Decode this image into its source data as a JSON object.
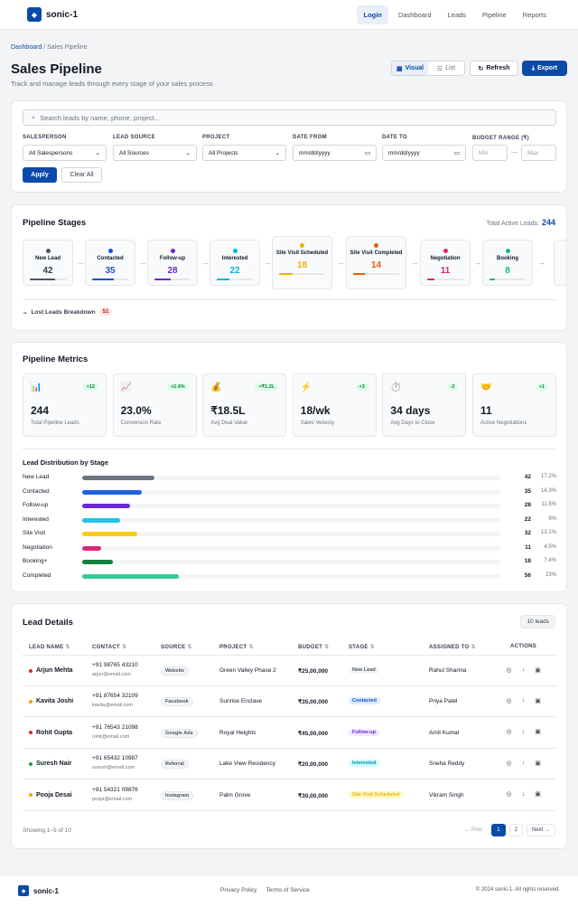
{
  "app": {
    "name": "sonic-1"
  },
  "nav": [
    {
      "label": "Login",
      "active": true
    },
    {
      "label": "Dashboard"
    },
    {
      "label": "Leads"
    },
    {
      "label": "Pipeline"
    },
    {
      "label": "Reports"
    }
  ],
  "breadcrumb": {
    "home": "Dashboard",
    "sep": "/",
    "current": "Sales Pipeline"
  },
  "page": {
    "title": "Sales Pipeline",
    "subtitle": "Track and manage leads through every stage of your sales process"
  },
  "actions": {
    "visual": "Visual",
    "list": "List",
    "refresh": "Refresh",
    "export": "Export"
  },
  "filters": {
    "search_placeholder": "Search leads by name, phone, project...",
    "salesperson_label": "SALESPERSON",
    "salesperson_value": "All Salespersons",
    "source_label": "LEAD SOURCE",
    "source_value": "All Sources",
    "project_label": "PROJECT",
    "project_value": "All Projects",
    "date_from_label": "DATE FROM",
    "date_from_placeholder": "mm/dd/yyyy",
    "date_to_label": "DATE TO",
    "date_to_placeholder": "mm/dd/yyyy",
    "budget_label": "BUDGET RANGE (₹)",
    "budget_min": "Min",
    "budget_sep": "—",
    "budget_max": "Max",
    "apply": "Apply",
    "clear": "Clear All"
  },
  "stages": {
    "title": "Pipeline Stages",
    "total_label": "Total Active Leads:",
    "total_value": "244",
    "items": [
      {
        "name": "New Lead",
        "count": "42",
        "color": "#4b5563",
        "fill": 0.7
      },
      {
        "name": "Contacted",
        "count": "35",
        "color": "#1d4ed8",
        "fill": 0.6
      },
      {
        "name": "Follow-up",
        "count": "28",
        "color": "#6d28d9",
        "fill": 0.45
      },
      {
        "name": "Interested",
        "count": "22",
        "color": "#06b6d4",
        "fill": 0.35
      },
      {
        "name": "Site Visit Scheduled",
        "count": "18",
        "color": "#eab308",
        "fill": 0.3
      },
      {
        "name": "Site Visit Completed",
        "count": "14",
        "color": "#ea580c",
        "fill": 0.25
      },
      {
        "name": "Negotiation",
        "count": "11",
        "color": "#db2777",
        "fill": 0.2
      },
      {
        "name": "Booking",
        "count": "8",
        "color": "#10b981",
        "fill": 0.15
      }
    ],
    "lost_label": "Lost Leads Breakdown",
    "lost_count": "51"
  },
  "metrics": {
    "title": "Pipeline Metrics",
    "items": [
      {
        "icon": "chart-icon",
        "glyph": "📊",
        "change": "+12",
        "value": "244",
        "label": "Total Pipeline Leads"
      },
      {
        "icon": "trend-icon",
        "glyph": "📈",
        "change": "+2.4%",
        "value": "23.0%",
        "label": "Conversion Rate"
      },
      {
        "icon": "money-bag-icon",
        "glyph": "💰",
        "change": "+₹1.2L",
        "value": "₹18.5L",
        "label": "Avg Deal Value"
      },
      {
        "icon": "lightning-icon",
        "glyph": "⚡",
        "change": "+3",
        "value": "18/wk",
        "label": "Sales Velocity"
      },
      {
        "icon": "stopwatch-icon",
        "glyph": "⏱️",
        "change": "-2",
        "value": "34 days",
        "label": "Avg Days to Close"
      },
      {
        "icon": "handshake-icon",
        "glyph": "🤝",
        "change": "+1",
        "value": "11",
        "label": "Active Negotiations"
      }
    ],
    "dist_title": "Lead Distribution by Stage",
    "dist": [
      {
        "name": "New Lead",
        "count": "42",
        "pct": "17.2%",
        "fill": 0.172,
        "color": "#6b7280"
      },
      {
        "name": "Contacted",
        "count": "35",
        "pct": "14.3%",
        "fill": 0.143,
        "color": "#1d64e0"
      },
      {
        "name": "Follow-up",
        "count": "28",
        "pct": "11.5%",
        "fill": 0.115,
        "color": "#6d28d9"
      },
      {
        "name": "Interested",
        "count": "22",
        "pct": "9%",
        "fill": 0.09,
        "color": "#22c3e6"
      },
      {
        "name": "Site Visit",
        "count": "32",
        "pct": "13.1%",
        "fill": 0.131,
        "color": "#facc15"
      },
      {
        "name": "Negotiation",
        "count": "11",
        "pct": "4.5%",
        "fill": 0.045,
        "color": "#db2777"
      },
      {
        "name": "Booking+",
        "count": "18",
        "pct": "7.4%",
        "fill": 0.074,
        "color": "#15803d"
      },
      {
        "name": "Completed",
        "count": "56",
        "pct": "23%",
        "fill": 0.23,
        "color": "#34c99a"
      }
    ]
  },
  "leads": {
    "title": "Lead Details",
    "count_badge": "10 leads",
    "columns": [
      "LEAD NAME",
      "CONTACT",
      "SOURCE",
      "PROJECT",
      "BUDGET",
      "STAGE",
      "ASSIGNED TO",
      "ACTIONS"
    ],
    "rows": [
      {
        "name": "Arjun Mehta",
        "dot": "#dc2626",
        "phone": "+91 98765 43210",
        "email": "arjun@email.com",
        "source": "Website",
        "project": "Green Valley Phase 2",
        "budget": "₹25,00,000",
        "stage": "New Lead",
        "stage_bg": "#f3f4f6",
        "stage_fg": "#4b5563",
        "assigned": "Rahul Sharma"
      },
      {
        "name": "Kavita Joshi",
        "dot": "#f59e0b",
        "phone": "+91 87654 32109",
        "email": "kavita@email.com",
        "source": "Facebook",
        "project": "Sunrise Enclave",
        "budget": "₹35,00,000",
        "stage": "Contacted",
        "stage_bg": "#dbeafe",
        "stage_fg": "#1d4ed8",
        "assigned": "Priya Patel"
      },
      {
        "name": "Rohit Gupta",
        "dot": "#dc2626",
        "phone": "+91 76543 21098",
        "email": "rohit@email.com",
        "source": "Google Ads",
        "project": "Royal Heights",
        "budget": "₹45,00,000",
        "stage": "Follow-up",
        "stage_bg": "#ede9fe",
        "stage_fg": "#6d28d9",
        "assigned": "Amit Kumar"
      },
      {
        "name": "Suresh Nair",
        "dot": "#16a34a",
        "phone": "+91 65432 10987",
        "email": "suresh@email.com",
        "source": "Referral",
        "project": "Lake View Residency",
        "budget": "₹20,00,000",
        "stage": "Interested",
        "stage_bg": "#cffafe",
        "stage_fg": "#0891b2",
        "assigned": "Sneha Reddy"
      },
      {
        "name": "Pooja Desai",
        "dot": "#f59e0b",
        "phone": "+91 54321 09876",
        "email": "pooja@email.com",
        "source": "Instagram",
        "project": "Palm Grove",
        "budget": "₹30,00,000",
        "stage": "Site Visit Scheduled",
        "stage_bg": "#fef9c3",
        "stage_fg": "#eab308",
        "assigned": "Vikram Singh"
      }
    ],
    "showing": "Showing 1–5 of 10",
    "pager": {
      "prev": "← Prev",
      "p1": "1",
      "p2": "2",
      "next": "Next →"
    }
  },
  "footer": {
    "privacy": "Privacy Policy",
    "terms": "Terms of Service",
    "copyright": "© 2024 sonic-1. All rights reserved."
  }
}
